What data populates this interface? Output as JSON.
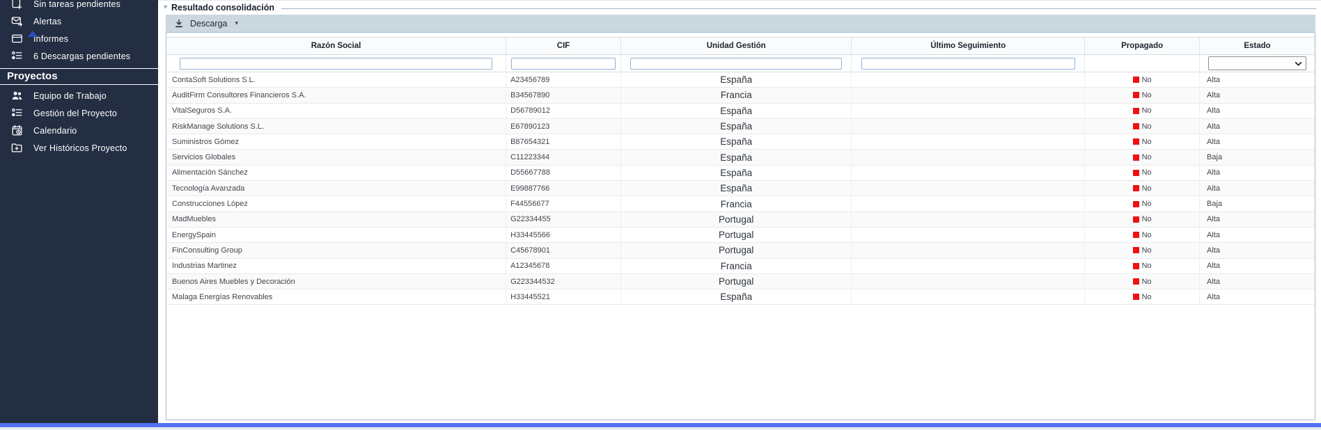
{
  "colors": {
    "sidebar_bg": "#242e42",
    "accent_bar_blue": "#5372f4",
    "toolbar_bg": "#ccd8e0",
    "propagado_no_red": "#ee1111",
    "panel_border": "#a4bdd1"
  },
  "sidebar": {
    "items": [
      {
        "label": "Sin tareas pendientes"
      },
      {
        "label": "Alertas"
      },
      {
        "label": "Informes"
      },
      {
        "label": "6 Descargas pendientes"
      }
    ],
    "section_title": "Proyectos",
    "project_items": [
      {
        "label": "Equipo de Trabajo"
      },
      {
        "label": "Gestión del Proyecto"
      },
      {
        "label": "Calendario"
      },
      {
        "label": "Ver Históricos Proyecto"
      }
    ]
  },
  "main": {
    "section_title": "Resultado consolidación",
    "toolbar": {
      "download_label": "Descarga"
    },
    "table": {
      "columns": [
        {
          "label": "Razón Social",
          "key": "razon_social",
          "filter": "text"
        },
        {
          "label": "CIF",
          "key": "cif",
          "filter": "text"
        },
        {
          "label": "Unidad Gestión",
          "key": "unidad_gestion",
          "filter": "text"
        },
        {
          "label": "Último Seguimiento",
          "key": "ultimo_seguimiento",
          "filter": "text"
        },
        {
          "label": "Propagado",
          "key": "propagado",
          "filter": "none"
        },
        {
          "label": "Estado",
          "key": "estado",
          "filter": "select"
        }
      ],
      "filter_values": {
        "razon_social": "",
        "cif": "",
        "unidad_gestion": "",
        "ultimo_seguimiento": "",
        "estado": ""
      },
      "rows": [
        {
          "razon_social": "ContaSoft Solutions S.L.",
          "cif": "A23456789",
          "unidad_gestion": "España",
          "ultimo_seguimiento": "",
          "propagado": "No",
          "estado": "Alta"
        },
        {
          "razon_social": "AuditFirm Consultores Financieros S.A.",
          "cif": "B34567890",
          "unidad_gestion": "Francia",
          "ultimo_seguimiento": "",
          "propagado": "No",
          "estado": "Alta"
        },
        {
          "razon_social": "VitalSeguros S.A.",
          "cif": "D56789012",
          "unidad_gestion": "España",
          "ultimo_seguimiento": "",
          "propagado": "No",
          "estado": "Alta"
        },
        {
          "razon_social": "RiskManage Solutions S.L.",
          "cif": "E67890123",
          "unidad_gestion": "España",
          "ultimo_seguimiento": "",
          "propagado": "No",
          "estado": "Alta"
        },
        {
          "razon_social": "Suministros Gómez",
          "cif": "B87654321",
          "unidad_gestion": "España",
          "ultimo_seguimiento": "",
          "propagado": "No",
          "estado": "Alta"
        },
        {
          "razon_social": "Servicios Globales",
          "cif": "C11223344",
          "unidad_gestion": "España",
          "ultimo_seguimiento": "",
          "propagado": "No",
          "estado": "Baja"
        },
        {
          "razon_social": "Alimentación Sánchez",
          "cif": "D55667788",
          "unidad_gestion": "España",
          "ultimo_seguimiento": "",
          "propagado": "No",
          "estado": "Alta"
        },
        {
          "razon_social": "Tecnología Avanzada",
          "cif": "E99887766",
          "unidad_gestion": "España",
          "ultimo_seguimiento": "",
          "propagado": "No",
          "estado": "Alta"
        },
        {
          "razon_social": "Construcciones López",
          "cif": "F44556677",
          "unidad_gestion": "Francia",
          "ultimo_seguimiento": "",
          "propagado": "No",
          "estado": "Baja"
        },
        {
          "razon_social": "MadMuebles",
          "cif": "G22334455",
          "unidad_gestion": "Portugal",
          "ultimo_seguimiento": "",
          "propagado": "No",
          "estado": "Alta"
        },
        {
          "razon_social": "EnergySpain",
          "cif": "H33445566",
          "unidad_gestion": "Portugal",
          "ultimo_seguimiento": "",
          "propagado": "No",
          "estado": "Alta"
        },
        {
          "razon_social": "FinConsulting Group",
          "cif": "C45678901",
          "unidad_gestion": "Portugal",
          "ultimo_seguimiento": "",
          "propagado": "No",
          "estado": "Alta"
        },
        {
          "razon_social": "Industrias Martinez",
          "cif": "A12345678",
          "unidad_gestion": "Francia",
          "ultimo_seguimiento": "",
          "propagado": "No",
          "estado": "Alta"
        },
        {
          "razon_social": "Buenos Aires Muebles y Decoración",
          "cif": "G223344532",
          "unidad_gestion": "Portugal",
          "ultimo_seguimiento": "",
          "propagado": "No",
          "estado": "Alta"
        },
        {
          "razon_social": "Malaga Energías Renovables",
          "cif": "H33445521",
          "unidad_gestion": "España",
          "ultimo_seguimiento": "",
          "propagado": "No",
          "estado": "Alta"
        }
      ]
    }
  }
}
